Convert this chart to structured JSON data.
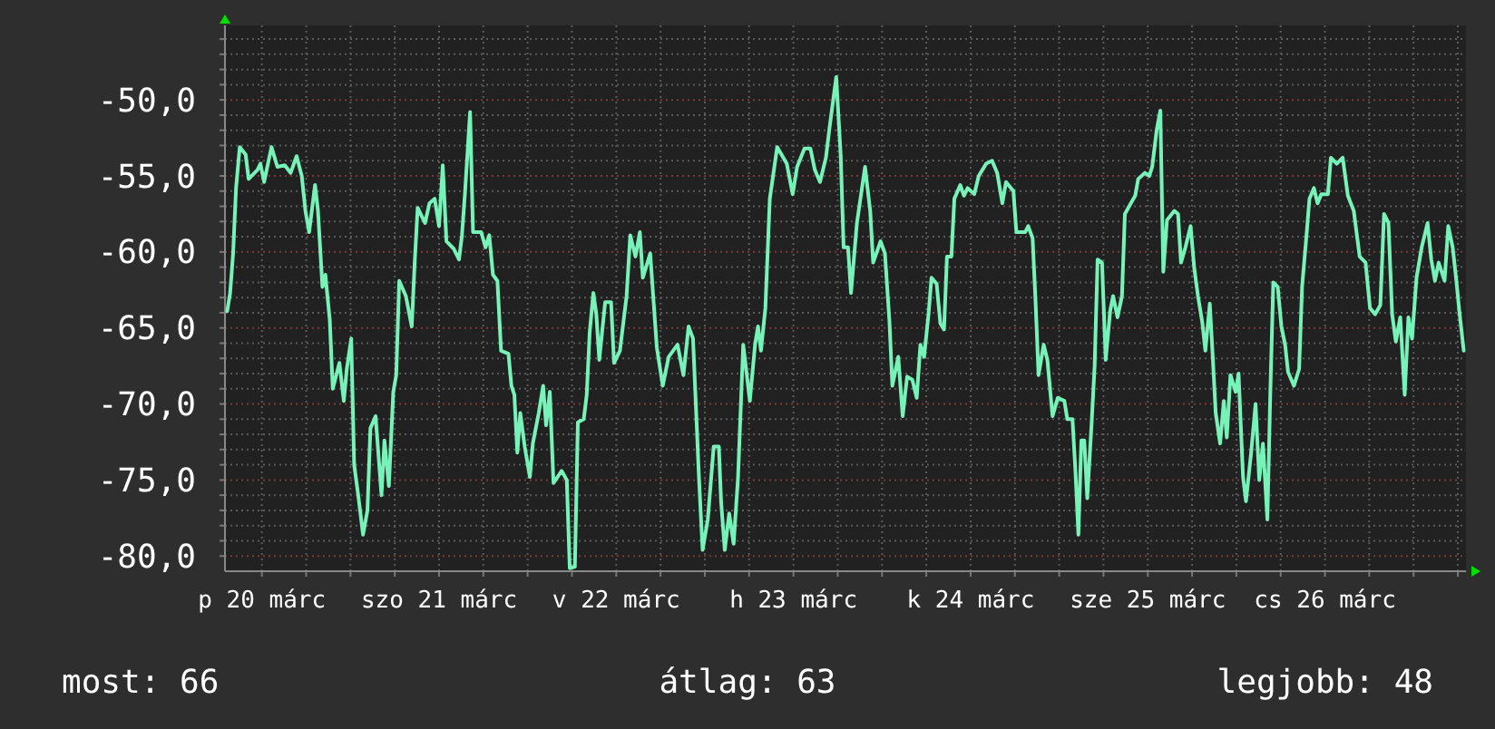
{
  "chart_data": {
    "type": "line",
    "grid": true,
    "xlim": [
      "--03-20T07:00",
      "--03-27T07:06"
    ],
    "ylim": [
      -81,
      -45.1
    ],
    "xticks": [
      {
        "value": "--03-20T12:00",
        "label": "p 20 márc"
      },
      {
        "value": "--03-20T18:00",
        "label": null
      },
      {
        "value": "--03-21T00:00",
        "label": null
      },
      {
        "value": "--03-21T06:00",
        "label": null
      },
      {
        "value": "--03-21T12:00",
        "label": "szo 21 márc"
      },
      {
        "value": "--03-21T18:00",
        "label": null
      },
      {
        "value": "--03-22T00:00",
        "label": null
      },
      {
        "value": "--03-22T06:00",
        "label": null
      },
      {
        "value": "--03-22T12:00",
        "label": "v 22 márc"
      },
      {
        "value": "--03-22T18:00",
        "label": null
      },
      {
        "value": "--03-23T00:00",
        "label": null
      },
      {
        "value": "--03-23T06:00",
        "label": null
      },
      {
        "value": "--03-23T12:00",
        "label": "h 23 márc"
      },
      {
        "value": "--03-23T18:00",
        "label": null
      },
      {
        "value": "--03-24T00:00",
        "label": null
      },
      {
        "value": "--03-24T06:00",
        "label": null
      },
      {
        "value": "--03-24T12:00",
        "label": "k 24 márc"
      },
      {
        "value": "--03-24T18:00",
        "label": null
      },
      {
        "value": "--03-25T00:00",
        "label": null
      },
      {
        "value": "--03-25T06:00",
        "label": null
      },
      {
        "value": "--03-25T12:00",
        "label": "sze 25 márc"
      },
      {
        "value": "--03-25T18:00",
        "label": null
      },
      {
        "value": "--03-26T00:00",
        "label": null
      },
      {
        "value": "--03-26T06:00",
        "label": null
      },
      {
        "value": "--03-26T12:00",
        "label": "cs 26 márc"
      },
      {
        "value": "--03-26T18:00",
        "label": null
      },
      {
        "value": "--03-27T00:00",
        "label": null
      },
      {
        "value": "--03-27T06:00",
        "label": null
      }
    ],
    "yticks": [
      {
        "value": -80,
        "label": "-80,0"
      },
      {
        "value": -79,
        "label": null
      },
      {
        "value": -78,
        "label": null
      },
      {
        "value": -77,
        "label": null
      },
      {
        "value": -76,
        "label": null
      },
      {
        "value": -75,
        "label": "-75,0"
      },
      {
        "value": -74,
        "label": null
      },
      {
        "value": -73,
        "label": null
      },
      {
        "value": -72,
        "label": null
      },
      {
        "value": -71,
        "label": null
      },
      {
        "value": -70,
        "label": "-70,0"
      },
      {
        "value": -69,
        "label": null
      },
      {
        "value": -68,
        "label": null
      },
      {
        "value": -67,
        "label": null
      },
      {
        "value": -66,
        "label": null
      },
      {
        "value": -65,
        "label": "-65,0"
      },
      {
        "value": -64,
        "label": null
      },
      {
        "value": -63,
        "label": null
      },
      {
        "value": -62,
        "label": null
      },
      {
        "value": -61,
        "label": null
      },
      {
        "value": -60,
        "label": "-60,0"
      },
      {
        "value": -59,
        "label": null
      },
      {
        "value": -58,
        "label": null
      },
      {
        "value": -57,
        "label": null
      },
      {
        "value": -56,
        "label": null
      },
      {
        "value": -55,
        "label": "-55,0"
      },
      {
        "value": -54,
        "label": null
      },
      {
        "value": -53,
        "label": null
      },
      {
        "value": -52,
        "label": null
      },
      {
        "value": -51,
        "label": null
      },
      {
        "value": -50,
        "label": "-50,0"
      },
      {
        "value": -49,
        "label": null
      },
      {
        "value": -48,
        "label": null
      },
      {
        "value": -47,
        "label": null
      },
      {
        "value": -46,
        "label": null
      }
    ],
    "x": [
      "--03-20T07:18",
      "--03-20T07:42",
      "--03-20T08:06",
      "--03-20T08:30",
      "--03-20T09:00",
      "--03-20T09:48",
      "--03-20T10:12",
      "--03-20T11:24",
      "--03-20T11:48",
      "--03-20T12:18",
      "--03-20T13:18",
      "--03-20T14:06",
      "--03-20T15:06",
      "--03-20T15:54",
      "--03-20T16:42",
      "--03-20T17:24",
      "--03-20T17:54",
      "--03-20T18:24",
      "--03-20T19:12",
      "--03-20T19:36",
      "--03-20T20:12",
      "--03-20T20:36",
      "--03-20T21:12",
      "--03-20T21:36",
      "--03-20T22:30",
      "--03-20T23:06",
      "--03-20T23:30",
      "--03-21T00:06",
      "--03-21T00:30",
      "--03-21T01:06",
      "--03-21T01:42",
      "--03-21T02:18",
      "--03-21T02:42",
      "--03-21T03:24",
      "--03-21T04:12",
      "--03-21T04:36",
      "--03-21T05:12",
      "--03-21T05:48",
      "--03-21T06:12",
      "--03-21T06:36",
      "--03-21T07:30",
      "--03-21T08:18",
      "--03-21T08:42",
      "--03-21T09:06",
      "--03-21T10:06",
      "--03-21T10:42",
      "--03-21T11:24",
      "--03-21T12:00",
      "--03-21T12:30",
      "--03-21T13:00",
      "--03-21T14:00",
      "--03-21T14:42",
      "--03-21T15:06",
      "--03-21T15:30",
      "--03-21T16:12",
      "--03-21T16:36",
      "--03-21T17:42",
      "--03-21T18:18",
      "--03-21T18:48",
      "--03-21T19:18",
      "--03-21T19:54",
      "--03-21T20:24",
      "--03-21T21:24",
      "--03-21T21:48",
      "--03-21T22:12",
      "--03-21T22:36",
      "--03-21T23:00",
      "--03-21T23:36",
      "--03-22T00:18",
      "--03-22T00:42",
      "--03-22T01:30",
      "--03-22T02:06",
      "--03-22T02:30",
      "--03-22T03:00",
      "--03-22T03:30",
      "--03-22T04:36",
      "--03-22T05:18",
      "--03-22T05:42",
      "--03-22T06:24",
      "--03-22T06:48",
      "--03-22T07:36",
      "--03-22T08:00",
      "--03-22T08:24",
      "--03-22T08:54",
      "--03-22T09:18",
      "--03-22T09:42",
      "--03-22T10:30",
      "--03-22T11:18",
      "--03-22T11:42",
      "--03-22T12:30",
      "--03-22T13:24",
      "--03-22T13:54",
      "--03-22T14:36",
      "--03-22T15:12",
      "--03-22T15:36",
      "--03-22T16:36",
      "--03-22T17:30",
      "--03-22T18:18",
      "--03-22T19:06",
      "--03-22T20:18",
      "--03-22T21:06",
      "--03-22T21:48",
      "--03-22T22:24",
      "--03-22T23:12",
      "--03-22T23:42",
      "--03-23T00:24",
      "--03-23T01:12",
      "--03-23T01:54",
      "--03-23T02:12",
      "--03-23T02:42",
      "--03-23T03:18",
      "--03-23T03:54",
      "--03-23T04:30",
      "--03-23T05:12",
      "--03-23T06:06",
      "--03-23T06:48",
      "--03-23T07:12",
      "--03-23T07:36",
      "--03-23T08:12",
      "--03-23T08:48",
      "--03-23T09:48",
      "--03-23T11:06",
      "--03-23T11:54",
      "--03-23T12:30",
      "--03-23T13:30",
      "--03-23T14:18",
      "--03-23T14:54",
      "--03-23T15:36",
      "--03-23T16:24",
      "--03-23T16:54",
      "--03-23T17:48",
      "--03-23T18:24",
      "--03-23T18:48",
      "--03-23T19:24",
      "--03-23T19:48",
      "--03-23T20:36",
      "--03-23T21:42",
      "--03-23T22:24",
      "--03-23T22:48",
      "--03-23T23:48",
      "--03-24T00:24",
      "--03-24T01:00",
      "--03-24T01:24",
      "--03-24T02:12",
      "--03-24T02:48",
      "--03-24T03:24",
      "--03-24T04:06",
      "--03-24T04:42",
      "--03-24T05:12",
      "--03-24T05:42",
      "--03-24T06:18",
      "--03-24T06:42",
      "--03-24T07:24",
      "--03-24T07:54",
      "--03-24T08:24",
      "--03-24T08:48",
      "--03-24T09:24",
      "--03-24T09:48",
      "--03-24T10:36",
      "--03-24T11:06",
      "--03-24T11:36",
      "--03-24T12:30",
      "--03-24T13:06",
      "--03-24T14:06",
      "--03-24T14:54",
      "--03-24T15:36",
      "--03-24T16:18",
      "--03-24T16:48",
      "--03-24T17:48",
      "--03-24T18:12",
      "--03-24T19:24",
      "--03-24T19:48",
      "--03-24T20:24",
      "--03-24T20:48",
      "--03-24T21:12",
      "--03-24T21:54",
      "--03-24T22:24",
      "--03-24T23:06",
      "--03-24T23:48",
      "--03-25T00:42",
      "--03-25T01:06",
      "--03-25T01:48",
      "--03-25T02:12",
      "--03-25T02:36",
      "--03-25T03:00",
      "--03-25T03:24",
      "--03-25T03:48",
      "--03-25T04:24",
      "--03-25T04:48",
      "--03-25T05:12",
      "--03-25T05:48",
      "--03-25T06:18",
      "--03-25T06:54",
      "--03-25T07:18",
      "--03-25T07:54",
      "--03-25T08:30",
      "--03-25T08:54",
      "--03-25T09:42",
      "--03-25T10:18",
      "--03-25T10:42",
      "--03-25T11:36",
      "--03-25T12:12",
      "--03-25T12:36",
      "--03-25T13:12",
      "--03-25T13:42",
      "--03-25T14:06",
      "--03-25T14:36",
      "--03-25T15:36",
      "--03-25T16:06",
      "--03-25T16:30",
      "--03-25T17:06",
      "--03-25T17:48",
      "--03-25T18:18",
      "--03-25T18:48",
      "--03-25T19:24",
      "--03-25T19:48",
      "--03-25T20:24",
      "--03-25T20:48",
      "--03-25T21:12",
      "--03-25T21:48",
      "--03-25T22:18",
      "--03-25T22:42",
      "--03-25T23:12",
      "--03-25T23:54",
      "--03-26T00:18",
      "--03-26T00:54",
      "--03-26T01:18",
      "--03-26T02:00",
      "--03-26T02:36",
      "--03-26T03:06",
      "--03-26T03:36",
      "--03-26T04:12",
      "--03-26T04:36",
      "--03-26T05:00",
      "--03-26T05:36",
      "--03-26T06:06",
      "--03-26T06:36",
      "--03-26T07:00",
      "--03-26T07:48",
      "--03-26T08:30",
      "--03-26T08:54",
      "--03-26T09:30",
      "--03-26T09:54",
      "--03-26T10:30",
      "--03-26T11:00",
      "--03-26T11:30",
      "--03-26T12:24",
      "--03-26T12:48",
      "--03-26T13:36",
      "--03-26T14:24",
      "--03-26T15:06",
      "--03-26T15:54",
      "--03-26T16:42",
      "--03-26T17:30",
      "--03-26T18:06",
      "--03-26T18:48",
      "--03-26T19:30",
      "--03-26T20:00",
      "--03-26T20:36",
      "--03-26T21:06",
      "--03-26T21:36",
      "--03-26T22:12",
      "--03-26T22:48",
      "--03-26T23:18",
      "--03-26T23:48",
      "--03-27T00:24",
      "--03-27T01:06",
      "--03-27T01:54",
      "--03-27T02:24",
      "--03-27T02:54",
      "--03-27T03:24",
      "--03-27T04:12",
      "--03-27T04:42",
      "--03-27T05:18",
      "--03-27T05:48",
      "--03-27T06:12",
      "--03-27T06:48"
    ],
    "series": [
      {
        "color": "#77f2b8",
        "values": [
          -63.9,
          -62.7,
          -60.1,
          -55.8,
          -53.1,
          -53.6,
          -55.2,
          -54.6,
          -54.2,
          -55.4,
          -53.1,
          -54.4,
          -54.3,
          -54.8,
          -53.7,
          -55.0,
          -57.3,
          -58.7,
          -55.6,
          -57.3,
          -62.3,
          -61.5,
          -64.5,
          -69.0,
          -67.3,
          -69.8,
          -67.7,
          -65.7,
          -74.0,
          -76.2,
          -78.6,
          -77.0,
          -71.6,
          -70.8,
          -76.0,
          -72.4,
          -75.4,
          -69.2,
          -68.1,
          -61.9,
          -62.9,
          -64.9,
          -60.7,
          -57.1,
          -58.1,
          -56.8,
          -56.5,
          -58.3,
          -54.3,
          -59.3,
          -59.8,
          -60.5,
          -58.9,
          -56.2,
          -50.8,
          -58.7,
          -58.7,
          -59.7,
          -58.9,
          -61.5,
          -61.9,
          -66.5,
          -66.7,
          -68.8,
          -69.4,
          -73.2,
          -70.6,
          -72.8,
          -74.8,
          -72.6,
          -70.6,
          -68.8,
          -71.4,
          -69.2,
          -75.2,
          -74.4,
          -75.0,
          -80.8,
          -80.7,
          -71.2,
          -71.0,
          -69.4,
          -65.3,
          -62.7,
          -64.1,
          -67.1,
          -63.3,
          -63.3,
          -67.3,
          -66.5,
          -62.9,
          -58.9,
          -60.3,
          -58.7,
          -61.7,
          -60.1,
          -66.3,
          -68.8,
          -66.9,
          -66.1,
          -68.1,
          -64.9,
          -65.7,
          -74.8,
          -79.6,
          -77.6,
          -72.8,
          -72.8,
          -76.4,
          -79.6,
          -77.2,
          -79.2,
          -74.8,
          -66.1,
          -69.8,
          -66.1,
          -64.9,
          -66.5,
          -63.7,
          -56.5,
          -53.1,
          -54.2,
          -56.2,
          -54.4,
          -53.2,
          -53.2,
          -54.6,
          -55.4,
          -53.8,
          -51.8,
          -48.5,
          -53.6,
          -59.7,
          -59.7,
          -62.7,
          -58.1,
          -54.4,
          -57.3,
          -60.7,
          -59.3,
          -60.1,
          -64.5,
          -68.8,
          -66.9,
          -70.8,
          -68.2,
          -68.4,
          -69.6,
          -66.1,
          -66.9,
          -64.1,
          -61.7,
          -62.1,
          -64.7,
          -65.1,
          -60.3,
          -60.3,
          -56.5,
          -55.6,
          -56.3,
          -55.8,
          -56.2,
          -55.0,
          -54.2,
          -54.0,
          -54.8,
          -56.8,
          -55.4,
          -56.0,
          -58.7,
          -58.7,
          -58.3,
          -59.1,
          -63.3,
          -68.1,
          -66.1,
          -67.1,
          -70.8,
          -69.6,
          -69.8,
          -71.0,
          -71.0,
          -74.4,
          -78.6,
          -72.4,
          -72.4,
          -76.2,
          -71.2,
          -67.5,
          -60.5,
          -60.7,
          -67.1,
          -63.9,
          -62.9,
          -64.3,
          -62.9,
          -57.5,
          -56.8,
          -56.3,
          -55.2,
          -54.8,
          -55.0,
          -54.4,
          -52.0,
          -50.7,
          -61.3,
          -57.9,
          -57.3,
          -57.5,
          -60.7,
          -59.7,
          -58.3,
          -61.1,
          -62.9,
          -64.7,
          -66.5,
          -63.4,
          -66.9,
          -70.6,
          -72.6,
          -69.8,
          -72.2,
          -68.1,
          -69.2,
          -68.0,
          -74.8,
          -76.4,
          -73.2,
          -70.0,
          -75.0,
          -72.6,
          -77.6,
          -69.2,
          -62.0,
          -62.3,
          -64.9,
          -66.1,
          -67.9,
          -68.8,
          -67.7,
          -62.3,
          -58.9,
          -56.5,
          -55.8,
          -56.8,
          -56.2,
          -56.2,
          -53.8,
          -54.2,
          -53.8,
          -56.3,
          -57.3,
          -60.3,
          -60.7,
          -63.7,
          -64.1,
          -63.5,
          -57.5,
          -58.1,
          -64.1,
          -65.9,
          -64.3,
          -69.4,
          -64.3,
          -65.7,
          -61.7,
          -59.7,
          -58.1,
          -60.5,
          -61.9,
          -60.7,
          -61.9,
          -58.3,
          -59.7,
          -61.9,
          -63.9,
          -66.5
        ]
      }
    ],
    "annotations": [
      "most: 66",
      "átlag: 63",
      "legjobb: 48"
    ]
  }
}
